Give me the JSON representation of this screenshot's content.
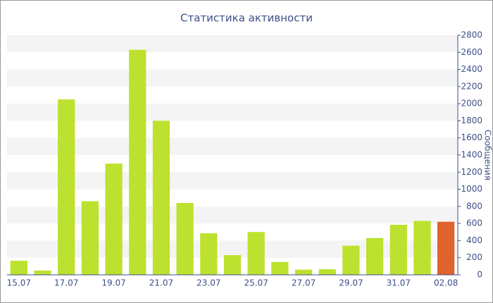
{
  "chart_data": {
    "type": "bar",
    "title": "Статистика активности",
    "y_label": "Сообщения",
    "categories": [
      "15.07",
      null,
      "17.07",
      null,
      "19.07",
      null,
      "21.07",
      null,
      "23.07",
      null,
      "25.07",
      null,
      "27.07",
      null,
      "29.07",
      null,
      "31.07",
      null,
      "02.08"
    ],
    "values": [
      165,
      50,
      2050,
      860,
      1300,
      2630,
      1800,
      840,
      485,
      230,
      500,
      150,
      60,
      65,
      340,
      430,
      585,
      630,
      620
    ],
    "colors": [
      "#bce22f",
      "#bce22f",
      "#bce22f",
      "#bce22f",
      "#bce22f",
      "#bce22f",
      "#bce22f",
      "#bce22f",
      "#bce22f",
      "#bce22f",
      "#bce22f",
      "#bce22f",
      "#bce22f",
      "#bce22f",
      "#bce22f",
      "#bce22f",
      "#bce22f",
      "#bce22f",
      "#e0622c"
    ],
    "ylim": [
      0,
      2800
    ],
    "yticks": [
      0,
      200,
      400,
      600,
      800,
      1000,
      1200,
      1400,
      1600,
      1800,
      2000,
      2200,
      2400,
      2600,
      2800
    ],
    "grid": true,
    "y_axis_side": "right"
  }
}
